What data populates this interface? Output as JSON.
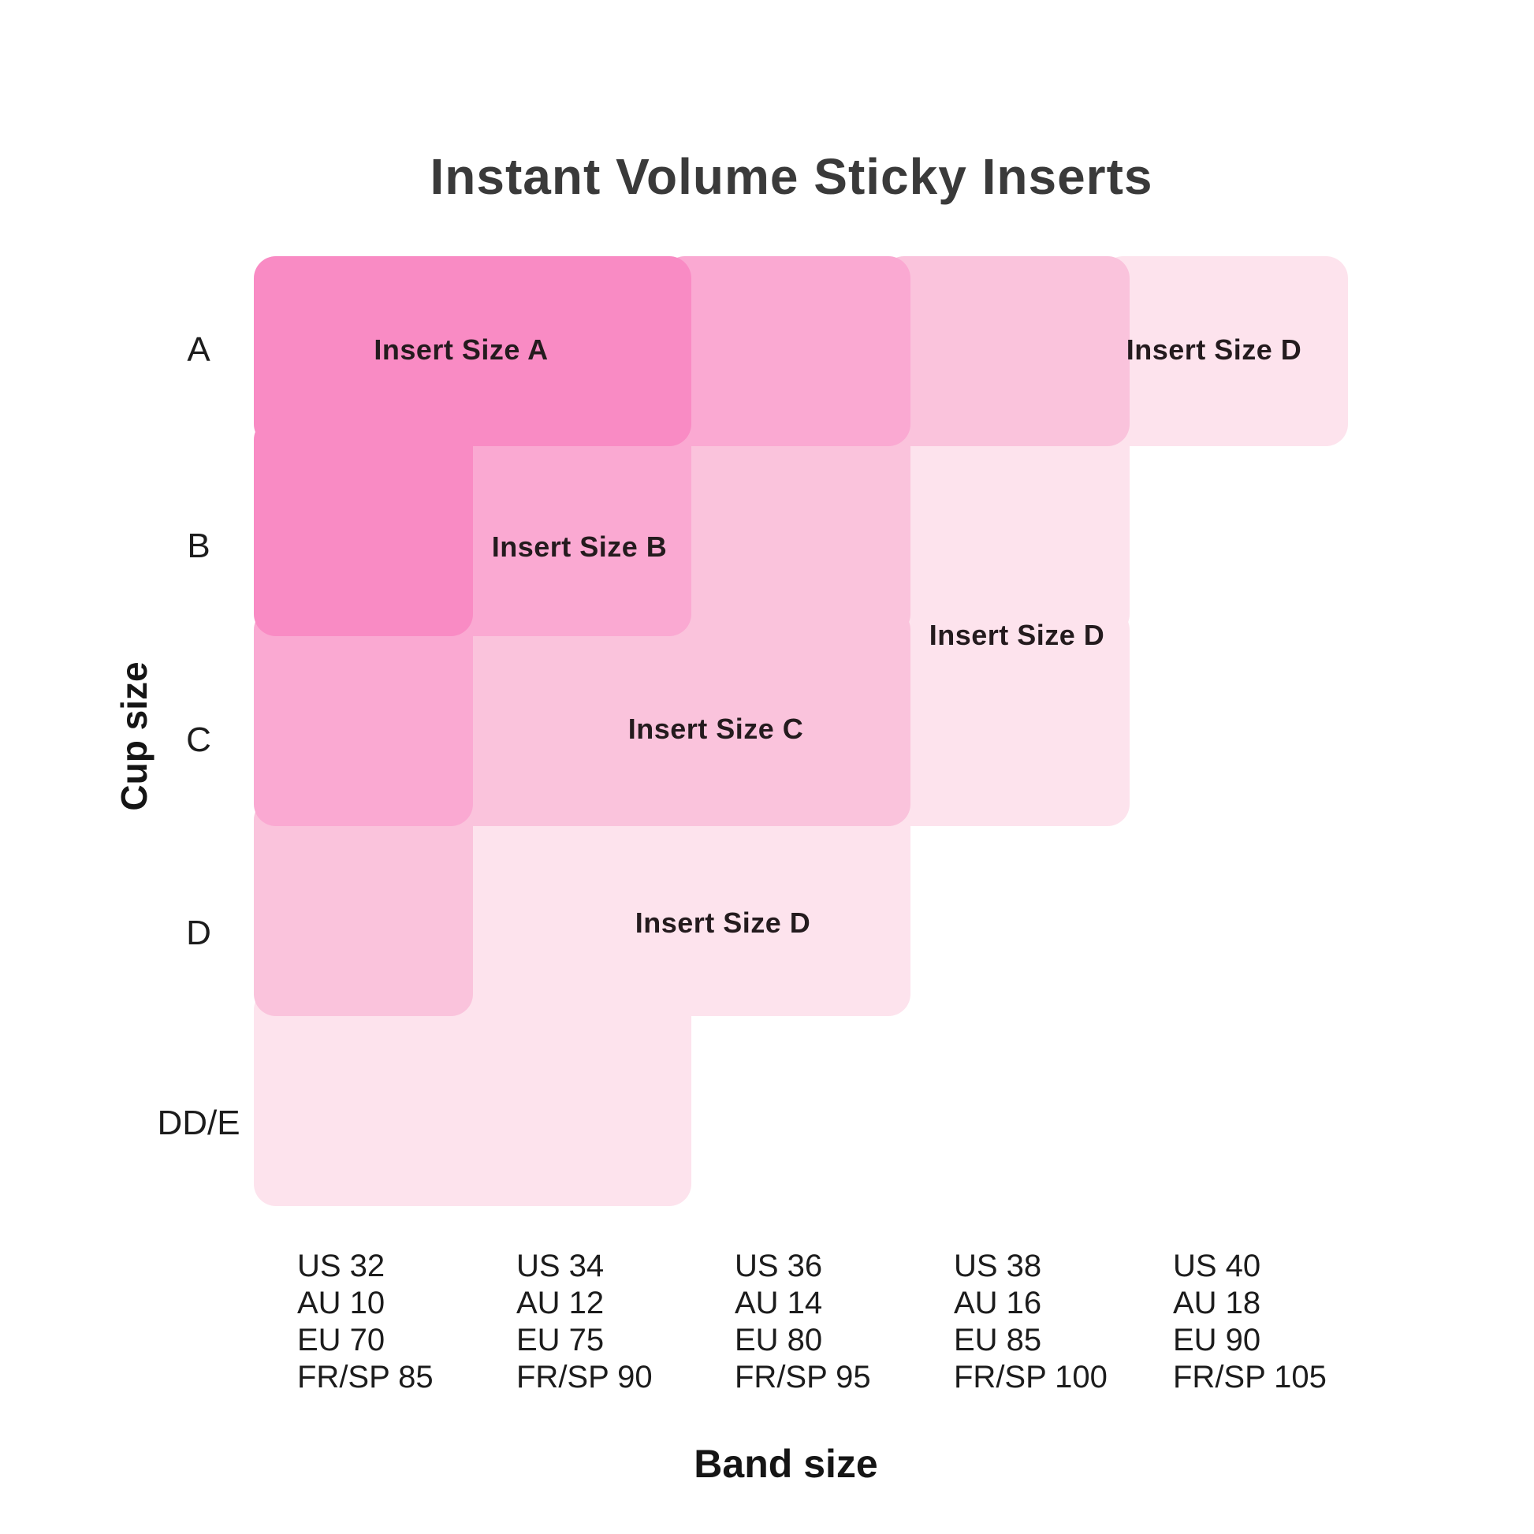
{
  "title": "Instant Volume Sticky Inserts",
  "y_axis": {
    "label": "Cup size",
    "categories": [
      "A",
      "B",
      "C",
      "D",
      "DD/E"
    ]
  },
  "x_axis": {
    "label": "Band size",
    "groups": [
      {
        "lines": [
          "US 32",
          "AU 10",
          "EU 70",
          "FR/SP 85"
        ]
      },
      {
        "lines": [
          "US 34",
          "AU 12",
          "EU 75",
          "FR/SP 90"
        ]
      },
      {
        "lines": [
          "US 36",
          "AU 14",
          "EU 80",
          "FR/SP 95"
        ]
      },
      {
        "lines": [
          "US 38",
          "AU 16",
          "EU 85",
          "FR/SP 100"
        ]
      },
      {
        "lines": [
          "US 40",
          "AU 18",
          "EU 90",
          "FR/SP 105"
        ]
      }
    ]
  },
  "bands": {
    "colors": {
      "A": "#F98BC4",
      "B": "#FAA9D2",
      "C": "#FAC3DC",
      "D": "#FDE3ED"
    },
    "paint_order": [
      "D",
      "C",
      "B",
      "A"
    ]
  },
  "region_labels": [
    {
      "id": "label-a",
      "band": "A",
      "text": "Insert Size A"
    },
    {
      "id": "label-b",
      "band": "B",
      "text": "Insert Size B"
    },
    {
      "id": "label-c",
      "band": "C",
      "text": "Insert Size C"
    },
    {
      "id": "label-d1",
      "band": "D",
      "text": "Insert Size D"
    },
    {
      "id": "label-d2",
      "band": "D",
      "text": "Insert Size D"
    },
    {
      "id": "label-d3",
      "band": "D",
      "text": "Insert Size D"
    }
  ],
  "chart_data": {
    "type": "heatmap",
    "title": "Instant Volume Sticky Inserts",
    "xlabel": "Band size",
    "ylabel": "Cup size",
    "x_categories": [
      "US 32 / AU 10 / EU 70 / FR-SP 85",
      "US 34 / AU 12 / EU 75 / FR-SP 90",
      "US 36 / AU 14 / EU 80 / FR-SP 95",
      "US 38 / AU 16 / EU 85 / FR-SP 100",
      "US 40 / AU 18 / EU 90 / FR-SP 105"
    ],
    "y_categories": [
      "A",
      "B",
      "C",
      "D",
      "DD/E"
    ],
    "values_note": "insert size recommended per cup-size row x band-size column; null = no recommendation shown",
    "values": [
      [
        "A",
        "A",
        "B",
        "C",
        "D"
      ],
      [
        "A",
        "B",
        "C",
        "D",
        null
      ],
      [
        "B",
        "C",
        "C",
        "D",
        null
      ],
      [
        "C",
        "D",
        "D",
        null,
        null
      ],
      [
        "D",
        "D",
        null,
        null,
        null
      ]
    ],
    "legend": [
      {
        "insert_size": "A",
        "color": "#F98BC4"
      },
      {
        "insert_size": "B",
        "color": "#FAA9D2"
      },
      {
        "insert_size": "C",
        "color": "#FAC3DC"
      },
      {
        "insert_size": "D",
        "color": "#FDE3ED"
      }
    ],
    "grid": false,
    "legend_position": "in-plot labels"
  }
}
